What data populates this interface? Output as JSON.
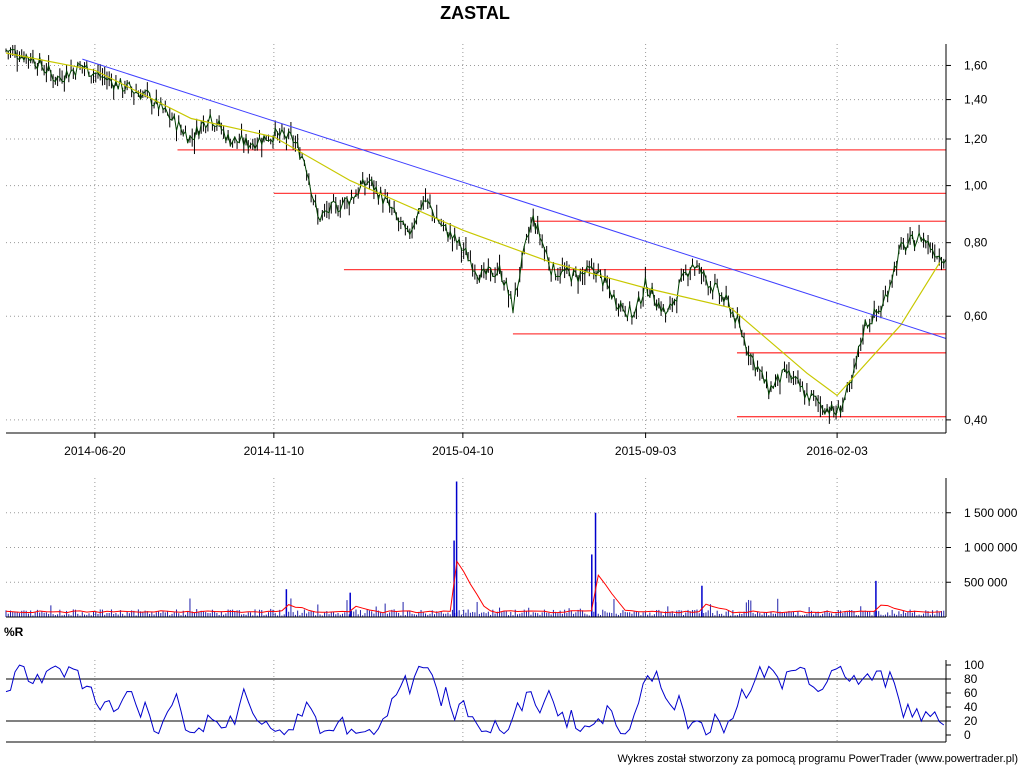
{
  "chart_data": [
    {
      "type": "candlestick",
      "title": "ZASTAL",
      "x_ticks": [
        "2014-06-20",
        "2014-11-10",
        "2015-04-10",
        "2015-09-03",
        "2016-02-03"
      ],
      "y_ticks": [
        "1,60",
        "1,40",
        "1,20",
        "1,00",
        "0,80",
        "0,60",
        "0,40"
      ],
      "y_scale": "log",
      "ylim": [
        0.38,
        1.74
      ],
      "grid": true,
      "series": [
        {
          "kind": "close",
          "x": [
            "2014-04-10",
            "2014-05-01",
            "2014-05-20",
            "2014-06-10",
            "2014-06-20",
            "2014-07-10",
            "2014-08-01",
            "2014-08-20",
            "2014-09-05",
            "2014-09-20",
            "2014-10-05",
            "2014-10-20",
            "2014-11-10",
            "2014-11-25",
            "2014-12-05",
            "2014-12-15",
            "2015-01-10",
            "2015-01-25",
            "2015-02-10",
            "2015-02-25",
            "2015-03-10",
            "2015-03-25",
            "2015-04-10",
            "2015-04-25",
            "2015-05-10",
            "2015-05-20",
            "2015-06-05",
            "2015-06-20",
            "2015-07-10",
            "2015-07-25",
            "2015-08-10",
            "2015-08-25",
            "2015-09-03",
            "2015-09-20",
            "2015-10-10",
            "2015-10-25",
            "2015-11-10",
            "2015-11-25",
            "2015-12-10",
            "2015-12-25",
            "2016-01-10",
            "2016-01-25",
            "2016-02-03",
            "2016-02-15",
            "2016-02-25",
            "2016-03-10",
            "2016-03-25",
            "2016-04-10",
            "2016-04-25"
          ],
          "values": [
            1.7,
            1.65,
            1.52,
            1.6,
            1.55,
            1.48,
            1.42,
            1.3,
            1.2,
            1.32,
            1.2,
            1.18,
            1.22,
            1.2,
            1.1,
            0.88,
            0.95,
            1.02,
            0.92,
            0.82,
            0.95,
            0.85,
            0.78,
            0.7,
            0.72,
            0.62,
            0.88,
            0.72,
            0.7,
            0.72,
            0.64,
            0.6,
            0.68,
            0.6,
            0.74,
            0.68,
            0.62,
            0.52,
            0.45,
            0.48,
            0.44,
            0.42,
            0.41,
            0.46,
            0.58,
            0.62,
            0.78,
            0.82,
            0.76
          ]
        },
        {
          "kind": "moving_average",
          "color": "#c8c800",
          "x": [
            "2014-04-10",
            "2014-06-20",
            "2014-09-05",
            "2014-11-10",
            "2015-01-10",
            "2015-04-10",
            "2015-06-20",
            "2015-09-03",
            "2015-11-10",
            "2016-01-10",
            "2016-02-03",
            "2016-03-25",
            "2016-04-25"
          ],
          "values": [
            1.68,
            1.57,
            1.3,
            1.21,
            1.02,
            0.84,
            0.74,
            0.67,
            0.62,
            0.48,
            0.44,
            0.58,
            0.74
          ]
        }
      ],
      "trendlines": [
        {
          "kind": "downtrend",
          "color": "#4040ff",
          "from": [
            "2014-06-10",
            1.64
          ],
          "to": [
            "2016-04-30",
            0.55
          ]
        }
      ],
      "support_resistance": [
        {
          "y": 1.15,
          "from": "2014-08-25",
          "color": "#ff4040"
        },
        {
          "y": 0.97,
          "from": "2014-11-10",
          "color": "#ff4040"
        },
        {
          "y": 0.87,
          "from": "2015-06-05",
          "color": "#ff4040"
        },
        {
          "y": 0.72,
          "from": "2015-01-05",
          "color": "#ff4040"
        },
        {
          "y": 0.56,
          "from": "2015-05-20",
          "color": "#ff4040"
        },
        {
          "y": 0.52,
          "from": "2015-11-15",
          "color": "#ff4040"
        },
        {
          "y": 0.405,
          "from": "2015-11-15",
          "color": "#ff4040"
        }
      ]
    },
    {
      "type": "bar",
      "title": "",
      "y_ticks": [
        "1 500 000",
        "1 000 000",
        "500 000"
      ],
      "ylim": [
        0,
        2000000
      ],
      "spikes": [
        {
          "x": "2015-04-05",
          "value": 1950000
        },
        {
          "x": "2015-04-03",
          "value": 1100000
        },
        {
          "x": "2015-07-25",
          "value": 1500000
        },
        {
          "x": "2015-07-22",
          "value": 900000
        },
        {
          "x": "2014-11-20",
          "value": 400000
        },
        {
          "x": "2015-01-10",
          "value": 350000
        },
        {
          "x": "2015-10-18",
          "value": 450000
        },
        {
          "x": "2016-03-05",
          "value": 520000
        }
      ],
      "average_line_color": "#ff0000"
    },
    {
      "type": "line",
      "title": "%R",
      "y_ticks": [
        "100",
        "80",
        "60",
        "40",
        "20",
        "0"
      ],
      "ylim": [
        0,
        100
      ],
      "reference_lines": [
        20,
        80
      ],
      "color": "#0000cc"
    }
  ],
  "footer": "Wykres został stworzony za pomocą programu PowerTrader (www.powertrader.pl)"
}
